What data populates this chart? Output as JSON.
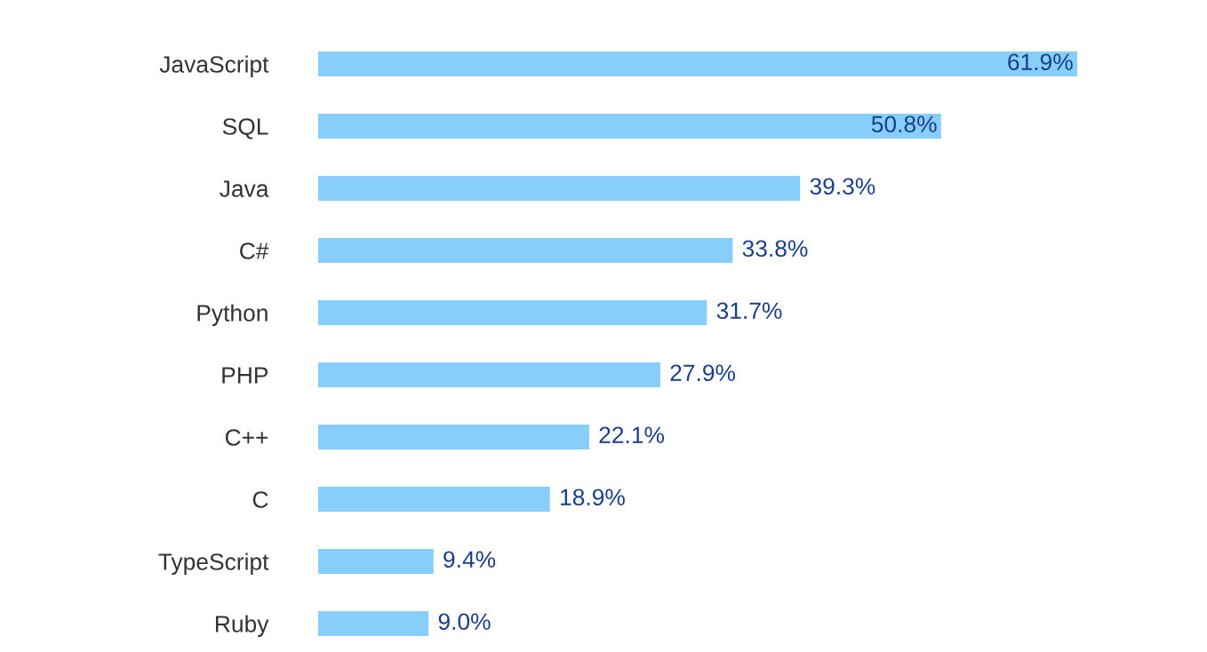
{
  "chart_data": {
    "type": "bar",
    "orientation": "horizontal",
    "categories": [
      "JavaScript",
      "SQL",
      "Java",
      "C#",
      "Python",
      "PHP",
      "C++",
      "C",
      "TypeScript",
      "Ruby"
    ],
    "values": [
      61.9,
      50.8,
      39.3,
      33.8,
      31.7,
      27.9,
      22.1,
      18.9,
      9.4,
      9.0
    ],
    "value_labels": [
      "61.9%",
      "50.8%",
      "39.3%",
      "33.8%",
      "31.7%",
      "27.9%",
      "22.1%",
      "18.9%",
      "9.4%",
      "9.0%"
    ],
    "color": "#87cefa",
    "grid": false,
    "legend": false
  }
}
